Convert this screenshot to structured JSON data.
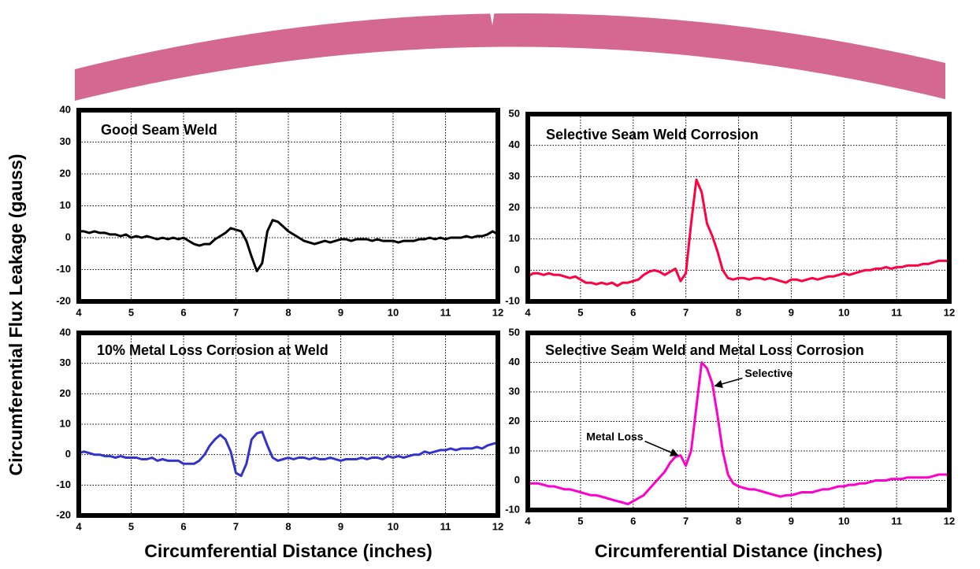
{
  "ylabel": "Circumferential Flux Leakage (gauss)",
  "chart_data": [
    {
      "type": "line",
      "title": "Good Seam Weld",
      "color": "#000000",
      "grid": true,
      "xlim": [
        4,
        12
      ],
      "xticks": [
        4,
        5,
        6,
        7,
        8,
        9,
        10,
        11,
        12
      ],
      "ylim": [
        -20,
        40
      ],
      "yticks": [
        -20,
        -10,
        0,
        10,
        20,
        30,
        40
      ],
      "x": [
        4,
        4.1,
        4.2,
        4.3,
        4.4,
        4.5,
        4.6,
        4.7,
        4.8,
        4.9,
        5,
        5.1,
        5.2,
        5.3,
        5.4,
        5.5,
        5.6,
        5.7,
        5.8,
        5.9,
        6,
        6.1,
        6.2,
        6.3,
        6.4,
        6.5,
        6.6,
        6.7,
        6.8,
        6.9,
        7,
        7.1,
        7.2,
        7.3,
        7.4,
        7.5,
        7.6,
        7.7,
        7.8,
        7.9,
        8,
        8.1,
        8.2,
        8.3,
        8.4,
        8.5,
        8.6,
        8.7,
        8.8,
        8.9,
        9,
        9.1,
        9.2,
        9.3,
        9.4,
        9.5,
        9.6,
        9.7,
        9.8,
        9.9,
        10,
        10.1,
        10.2,
        10.3,
        10.4,
        10.5,
        10.6,
        10.7,
        10.8,
        10.9,
        11,
        11.1,
        11.2,
        11.3,
        11.4,
        11.5,
        11.6,
        11.7,
        11.8,
        11.9,
        12
      ],
      "values": [
        2,
        2,
        1.5,
        2,
        1.5,
        1.5,
        1,
        1,
        0.5,
        1,
        0,
        0.5,
        0,
        0.5,
        0,
        -0.5,
        0,
        -0.5,
        0,
        -0.5,
        0,
        -1,
        -2,
        -2.5,
        -2,
        -2,
        -0.5,
        0.5,
        1.5,
        3,
        2.5,
        2,
        -1,
        -6,
        -10.5,
        -8,
        2,
        5.5,
        5,
        3.5,
        2,
        1,
        0,
        -1,
        -1.5,
        -2,
        -1.5,
        -1,
        -1.5,
        -1,
        -0.5,
        -0.5,
        -1,
        -0.5,
        -0.5,
        -0.5,
        -1,
        -0.5,
        -1,
        -1,
        -1,
        -1.5,
        -1,
        -1,
        -1,
        -0.5,
        -0.5,
        0,
        -0.5,
        0,
        -0.5,
        0,
        0,
        0,
        0.5,
        0,
        0.5,
        0.5,
        1,
        2,
        1
      ]
    },
    {
      "type": "line",
      "title": "Selective Seam Weld Corrosion",
      "color": "#ff0040",
      "grid": true,
      "xlim": [
        4,
        12
      ],
      "xticks": [
        4,
        5,
        6,
        7,
        8,
        9,
        10,
        11,
        12
      ],
      "ylim": [
        -10,
        50
      ],
      "yticks": [
        -10,
        0,
        10,
        20,
        30,
        40,
        50
      ],
      "x": [
        4,
        4.1,
        4.2,
        4.3,
        4.4,
        4.5,
        4.6,
        4.7,
        4.8,
        4.9,
        5,
        5.1,
        5.2,
        5.3,
        5.4,
        5.5,
        5.6,
        5.7,
        5.8,
        5.9,
        6,
        6.1,
        6.2,
        6.3,
        6.4,
        6.5,
        6.6,
        6.7,
        6.8,
        6.9,
        7,
        7.1,
        7.2,
        7.3,
        7.4,
        7.5,
        7.6,
        7.7,
        7.8,
        7.9,
        8,
        8.1,
        8.2,
        8.3,
        8.4,
        8.5,
        8.6,
        8.7,
        8.8,
        8.9,
        9,
        9.1,
        9.2,
        9.3,
        9.4,
        9.5,
        9.6,
        9.7,
        9.8,
        9.9,
        10,
        10.1,
        10.2,
        10.3,
        10.4,
        10.5,
        10.6,
        10.7,
        10.8,
        10.9,
        11,
        11.1,
        11.2,
        11.3,
        11.4,
        11.5,
        11.6,
        11.7,
        11.8,
        11.9,
        12
      ],
      "values": [
        -2,
        -1,
        -1,
        -1.5,
        -1,
        -1.5,
        -1.5,
        -2,
        -2.5,
        -2,
        -3,
        -4,
        -4,
        -4.5,
        -4,
        -4.5,
        -4,
        -5,
        -4,
        -4,
        -3.5,
        -3,
        -1.5,
        -0.5,
        0,
        -0.5,
        -1.5,
        -0.5,
        0.5,
        -3.5,
        -1,
        15,
        29,
        25,
        15,
        11,
        6,
        0,
        -2.5,
        -3,
        -2.5,
        -2.5,
        -3,
        -2.5,
        -2.5,
        -3,
        -2.5,
        -3,
        -3.5,
        -4,
        -3,
        -3,
        -3.5,
        -3,
        -2.5,
        -3,
        -2.5,
        -2,
        -2,
        -1.5,
        -1,
        -1.5,
        -1,
        -0.5,
        0,
        0,
        0.5,
        0.5,
        1,
        0.5,
        1,
        1,
        1.5,
        1.5,
        1.5,
        2,
        2,
        2.5,
        3,
        3,
        3
      ]
    },
    {
      "type": "line",
      "title": "10% Metal Loss Corrosion at Weld",
      "color": "#3333cc",
      "grid": true,
      "xlabel": "Circumferential Distance (inches)",
      "xlim": [
        4,
        12
      ],
      "xticks": [
        4,
        5,
        6,
        7,
        8,
        9,
        10,
        11,
        12
      ],
      "ylim": [
        -20,
        40
      ],
      "yticks": [
        -20,
        -10,
        0,
        10,
        20,
        30,
        40
      ],
      "x": [
        4,
        4.1,
        4.2,
        4.3,
        4.4,
        4.5,
        4.6,
        4.7,
        4.8,
        4.9,
        5,
        5.1,
        5.2,
        5.3,
        5.4,
        5.5,
        5.6,
        5.7,
        5.8,
        5.9,
        6,
        6.1,
        6.2,
        6.3,
        6.4,
        6.5,
        6.6,
        6.7,
        6.8,
        6.9,
        7,
        7.1,
        7.2,
        7.3,
        7.4,
        7.5,
        7.6,
        7.7,
        7.8,
        7.9,
        8,
        8.1,
        8.2,
        8.3,
        8.4,
        8.5,
        8.6,
        8.7,
        8.8,
        8.9,
        9,
        9.1,
        9.2,
        9.3,
        9.4,
        9.5,
        9.6,
        9.7,
        9.8,
        9.9,
        10,
        10.1,
        10.2,
        10.3,
        10.4,
        10.5,
        10.6,
        10.7,
        10.8,
        10.9,
        11,
        11.1,
        11.2,
        11.3,
        11.4,
        11.5,
        11.6,
        11.7,
        11.8,
        11.9,
        12
      ],
      "values": [
        0.5,
        1,
        0.5,
        0,
        0,
        -0.5,
        -0.5,
        -1,
        -0.5,
        -1,
        -1,
        -1,
        -1.5,
        -1.5,
        -1,
        -2,
        -1.5,
        -2,
        -2,
        -2,
        -3,
        -3,
        -3,
        -2,
        0,
        3,
        5,
        6.5,
        5,
        1,
        -6,
        -7,
        -3,
        5,
        7,
        7.5,
        3,
        -1,
        -2,
        -1.5,
        -1,
        -1.5,
        -1,
        -1,
        -1.5,
        -1,
        -1.5,
        -1.5,
        -1,
        -1.5,
        -2,
        -1.5,
        -1.5,
        -1.5,
        -1,
        -1.5,
        -1,
        -1,
        -1.5,
        -0.5,
        -1,
        -0.5,
        -1,
        -0.5,
        0,
        0,
        1,
        0.5,
        1,
        1.5,
        1.5,
        2,
        1.5,
        2,
        2,
        2,
        2.5,
        2,
        3,
        3.5,
        4
      ]
    },
    {
      "type": "line",
      "title": "Selective Seam Weld and Metal Loss Corrosion",
      "color": "#ff00cc",
      "grid": true,
      "xlabel": "Circumferential Distance (inches)",
      "xlim": [
        4,
        12
      ],
      "xticks": [
        4,
        5,
        6,
        7,
        8,
        9,
        10,
        11,
        12
      ],
      "ylim": [
        -10,
        50
      ],
      "yticks": [
        -10,
        0,
        10,
        20,
        30,
        40,
        50
      ],
      "x": [
        4,
        4.1,
        4.2,
        4.3,
        4.4,
        4.5,
        4.6,
        4.7,
        4.8,
        4.9,
        5,
        5.1,
        5.2,
        5.3,
        5.4,
        5.5,
        5.6,
        5.7,
        5.8,
        5.9,
        6,
        6.1,
        6.2,
        6.3,
        6.4,
        6.5,
        6.6,
        6.7,
        6.8,
        6.9,
        7,
        7.1,
        7.2,
        7.3,
        7.4,
        7.5,
        7.6,
        7.7,
        7.8,
        7.9,
        8,
        8.1,
        8.2,
        8.3,
        8.4,
        8.5,
        8.6,
        8.7,
        8.8,
        8.9,
        9,
        9.1,
        9.2,
        9.3,
        9.4,
        9.5,
        9.6,
        9.7,
        9.8,
        9.9,
        10,
        10.1,
        10.2,
        10.3,
        10.4,
        10.5,
        10.6,
        10.7,
        10.8,
        10.9,
        11,
        11.1,
        11.2,
        11.3,
        11.4,
        11.5,
        11.6,
        11.7,
        11.8,
        11.9,
        12
      ],
      "values": [
        -1,
        -1,
        -1,
        -1.5,
        -2,
        -2,
        -2.5,
        -3,
        -3,
        -3.5,
        -4,
        -4.5,
        -5,
        -5,
        -5.5,
        -6,
        -6.5,
        -7,
        -7.5,
        -8,
        -7,
        -6,
        -5,
        -3,
        -1,
        1,
        3,
        6,
        8,
        8.5,
        5,
        10,
        25,
        40,
        38,
        33,
        22,
        10,
        2,
        -1,
        -2,
        -2.5,
        -3,
        -3,
        -3.5,
        -4,
        -4.5,
        -5,
        -5.5,
        -5,
        -5,
        -4.5,
        -4,
        -4,
        -4,
        -3.5,
        -3,
        -3,
        -2.5,
        -2,
        -2,
        -1.5,
        -1.5,
        -1,
        -1,
        -0.5,
        0,
        0,
        0,
        0.5,
        0.5,
        0.5,
        1,
        1,
        1,
        1,
        1,
        1.5,
        2,
        2,
        2
      ],
      "annotations": [
        {
          "text": "Metal Loss",
          "x": 6.85,
          "y": 8.5
        },
        {
          "text": "Selective",
          "x": 7.55,
          "y": 32
        }
      ]
    }
  ]
}
